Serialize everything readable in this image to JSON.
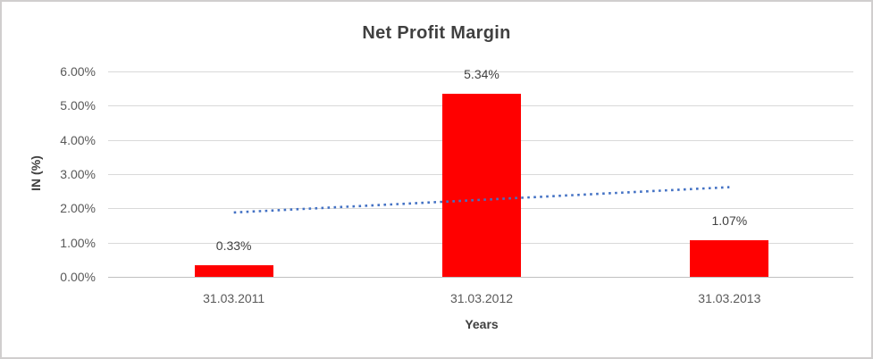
{
  "chart_data": {
    "type": "bar",
    "title": "Net Profit Margin",
    "categories": [
      "31.03.2011",
      "31.03.2012",
      "31.03.2013"
    ],
    "values": [
      0.33,
      5.34,
      1.07
    ],
    "data_labels": [
      "0.33%",
      "5.34%",
      "1.07%"
    ],
    "xlabel": "Years",
    "ylabel": "IN (%)",
    "ylim": [
      0,
      6
    ],
    "ytick_labels": [
      "0.00%",
      "1.00%",
      "2.00%",
      "3.00%",
      "4.00%",
      "5.00%",
      "6.00%"
    ],
    "grid": "horizontal",
    "legend": "none",
    "colors": {
      "bar": "#ff0000",
      "trendline": "#4472c4",
      "gridline": "#d9d9d9",
      "axis_line": "#bfbfbf",
      "title_text": "#404040",
      "tick_text": "#595959"
    },
    "trendline": {
      "style": "dotted",
      "color": "#4472c4",
      "start_value": 1.88,
      "end_value": 2.62
    }
  }
}
